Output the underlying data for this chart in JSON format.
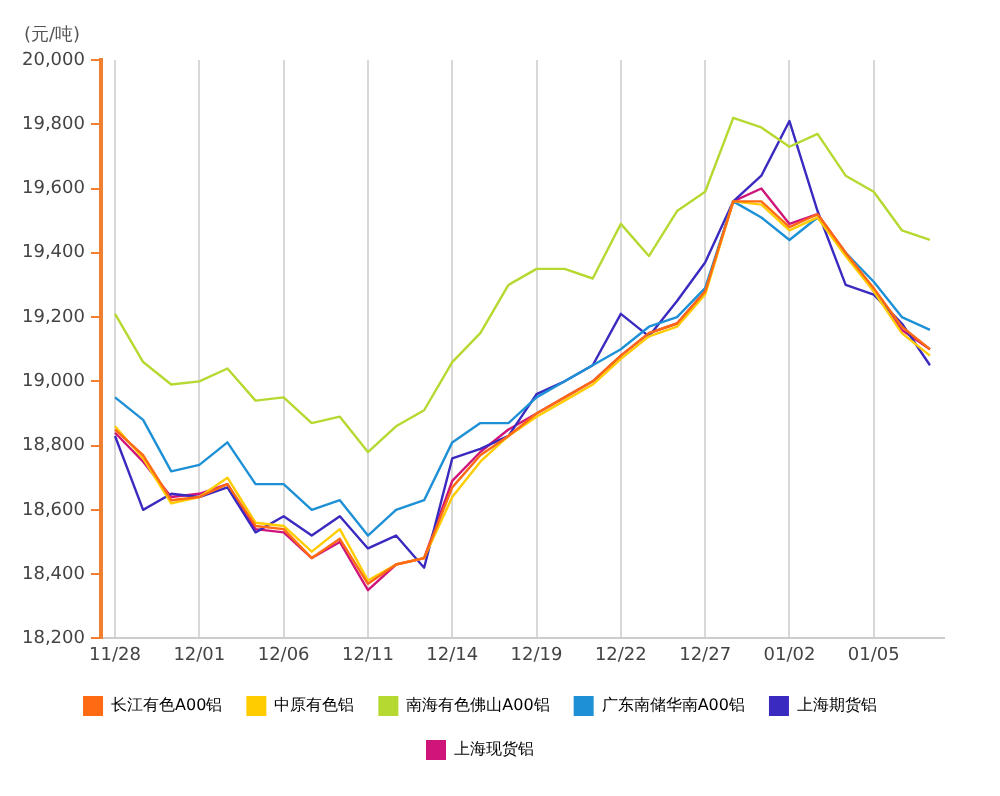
{
  "chart_data": {
    "type": "line",
    "ylabel": "(元/吨)",
    "categories": [
      "11/28",
      null,
      null,
      "12/01",
      null,
      null,
      "12/06",
      null,
      null,
      "12/11",
      null,
      null,
      "12/14",
      null,
      null,
      "12/19",
      null,
      null,
      "12/22",
      null,
      null,
      "12/27",
      null,
      null,
      "01/02",
      null,
      null,
      "01/05",
      null,
      null
    ],
    "series": [
      {
        "name": "长江有色A00铝",
        "color": "#ff6a13",
        "values": [
          18850,
          18770,
          18630,
          18640,
          18680,
          18550,
          18540,
          18450,
          18510,
          18370,
          18430,
          18450,
          18670,
          18770,
          18830,
          18900,
          18950,
          19000,
          19080,
          19150,
          19180,
          19280,
          19560,
          19560,
          19480,
          19520,
          19400,
          19290,
          19170,
          19100
        ]
      },
      {
        "name": "中原有色铝",
        "color": "#ffcc00",
        "values": [
          18860,
          18760,
          18620,
          18640,
          18700,
          18560,
          18550,
          18470,
          18540,
          18380,
          18430,
          18450,
          18640,
          18750,
          18830,
          18890,
          18940,
          18990,
          19070,
          19140,
          19170,
          19270,
          19560,
          19550,
          19470,
          19510,
          19390,
          19280,
          19150,
          19080
        ]
      },
      {
        "name": "南海有色佛山A00铝",
        "color": "#b5d930",
        "values": [
          19210,
          19060,
          18990,
          19000,
          19040,
          18940,
          18950,
          18870,
          18890,
          18780,
          18860,
          18910,
          19060,
          19150,
          19300,
          19350,
          19350,
          19320,
          19490,
          19390,
          19530,
          19590,
          19820,
          19790,
          19730,
          19770,
          19640,
          19590,
          19470,
          19440
        ]
      },
      {
        "name": "广东南储华南A00铝",
        "color": "#1e90d6",
        "values": [
          18950,
          18880,
          18720,
          18740,
          18810,
          18680,
          18680,
          18600,
          18630,
          18520,
          18600,
          18630,
          18810,
          18870,
          18870,
          18950,
          19000,
          19050,
          19100,
          19170,
          19200,
          19290,
          19560,
          19510,
          19440,
          19510,
          19400,
          19310,
          19200,
          19160
        ]
      },
      {
        "name": "上海期货铝",
        "color": "#3a2ac0",
        "values": [
          18830,
          18600,
          18650,
          18640,
          18670,
          18530,
          18580,
          18520,
          18580,
          18480,
          18520,
          18420,
          18760,
          18790,
          18830,
          18960,
          19000,
          19050,
          19210,
          19140,
          19250,
          19370,
          19560,
          19640,
          19810,
          19530,
          19300,
          19270,
          19180,
          19050
        ]
      },
      {
        "name": "上海现货铝",
        "color": "#d0157a",
        "values": [
          18840,
          18750,
          18640,
          18650,
          18680,
          18540,
          18530,
          18450,
          18500,
          18350,
          18430,
          18450,
          18690,
          18780,
          18850,
          18900,
          18950,
          19000,
          19080,
          19150,
          19180,
          19280,
          19560,
          19600,
          19490,
          19520,
          19400,
          19280,
          19160,
          19100
        ]
      }
    ],
    "ylim": [
      18200,
      20000
    ],
    "yticks": [
      {
        "value": 18200,
        "label": "18,200"
      },
      {
        "value": 18400,
        "label": "18,400"
      },
      {
        "value": 18600,
        "label": "18,600"
      },
      {
        "value": 18800,
        "label": "18,800"
      },
      {
        "value": 19000,
        "label": "19,000"
      },
      {
        "value": 19200,
        "label": "19,200"
      },
      {
        "value": 19400,
        "label": "19,400"
      },
      {
        "value": 19600,
        "label": "19,600"
      },
      {
        "value": 19800,
        "label": "19,800"
      },
      {
        "value": 20000,
        "label": "20,000"
      }
    ],
    "grid": "x",
    "legend": "bottom",
    "marker": "none",
    "line_style": "solid"
  }
}
